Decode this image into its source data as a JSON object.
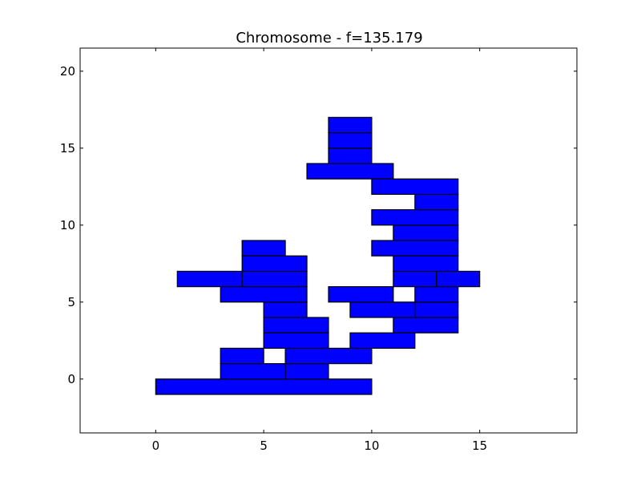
{
  "chart_data": {
    "type": "bar",
    "title": "Chromosome - f=135.179",
    "xlabel": "",
    "ylabel": "",
    "xlim": [
      -3.5,
      19.5
    ],
    "ylim": [
      -3.5,
      21.5
    ],
    "xticks": [
      0,
      5,
      10,
      15
    ],
    "yticks": [
      0,
      5,
      10,
      15,
      20
    ],
    "xtick_labels": [
      "0",
      "5",
      "10",
      "15"
    ],
    "ytick_labels": [
      "0",
      "5",
      "10",
      "15",
      "20"
    ],
    "grid": false,
    "bar_color": "#0000ff",
    "edge_color": "#000000",
    "rectangles": [
      {
        "x0": 0,
        "x1": 10,
        "y0": -1,
        "y1": 0
      },
      {
        "x0": 3,
        "x1": 6,
        "y0": 0,
        "y1": 1
      },
      {
        "x0": 6,
        "x1": 8,
        "y0": 0,
        "y1": 1
      },
      {
        "x0": 3,
        "x1": 5,
        "y0": 1,
        "y1": 2
      },
      {
        "x0": 6,
        "x1": 10,
        "y0": 1,
        "y1": 2
      },
      {
        "x0": 5,
        "x1": 8,
        "y0": 2,
        "y1": 3
      },
      {
        "x0": 9,
        "x1": 12,
        "y0": 2,
        "y1": 3
      },
      {
        "x0": 5,
        "x1": 8,
        "y0": 3,
        "y1": 4
      },
      {
        "x0": 11,
        "x1": 14,
        "y0": 3,
        "y1": 4
      },
      {
        "x0": 5,
        "x1": 7,
        "y0": 4,
        "y1": 5
      },
      {
        "x0": 9,
        "x1": 12,
        "y0": 4,
        "y1": 5
      },
      {
        "x0": 12,
        "x1": 14,
        "y0": 4,
        "y1": 5
      },
      {
        "x0": 3,
        "x1": 7,
        "y0": 5,
        "y1": 6
      },
      {
        "x0": 8,
        "x1": 11,
        "y0": 5,
        "y1": 6
      },
      {
        "x0": 12,
        "x1": 14,
        "y0": 5,
        "y1": 6
      },
      {
        "x0": 1,
        "x1": 4,
        "y0": 6,
        "y1": 7
      },
      {
        "x0": 4,
        "x1": 7,
        "y0": 6,
        "y1": 7
      },
      {
        "x0": 11,
        "x1": 13,
        "y0": 6,
        "y1": 7
      },
      {
        "x0": 13,
        "x1": 15,
        "y0": 6,
        "y1": 7
      },
      {
        "x0": 4,
        "x1": 7,
        "y0": 7,
        "y1": 8
      },
      {
        "x0": 11,
        "x1": 14,
        "y0": 7,
        "y1": 8
      },
      {
        "x0": 4,
        "x1": 6,
        "y0": 8,
        "y1": 9
      },
      {
        "x0": 10,
        "x1": 14,
        "y0": 8,
        "y1": 9
      },
      {
        "x0": 11,
        "x1": 14,
        "y0": 9,
        "y1": 10
      },
      {
        "x0": 10,
        "x1": 14,
        "y0": 10,
        "y1": 11
      },
      {
        "x0": 12,
        "x1": 14,
        "y0": 11,
        "y1": 12
      },
      {
        "x0": 10,
        "x1": 14,
        "y0": 12,
        "y1": 13
      },
      {
        "x0": 7,
        "x1": 11,
        "y0": 13,
        "y1": 14
      },
      {
        "x0": 8,
        "x1": 10,
        "y0": 14,
        "y1": 15
      },
      {
        "x0": 8,
        "x1": 10,
        "y0": 15,
        "y1": 16
      },
      {
        "x0": 8,
        "x1": 10,
        "y0": 16,
        "y1": 17
      }
    ]
  }
}
